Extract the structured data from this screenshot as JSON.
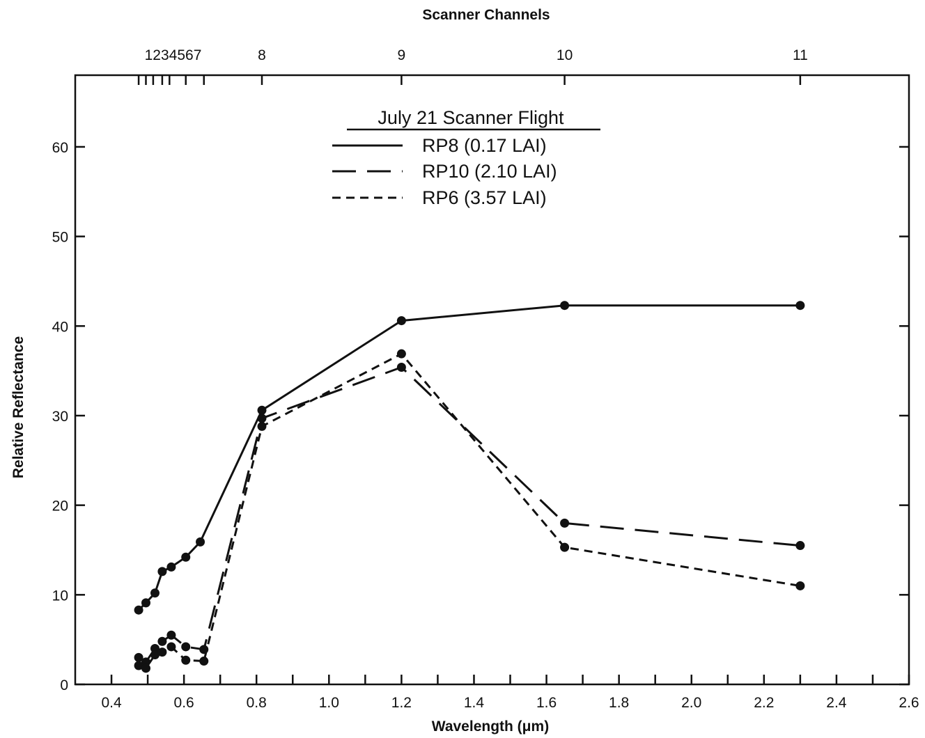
{
  "chart_data": {
    "type": "line",
    "title": "",
    "xlabel": "Wavelength (μm)",
    "ylabel": "Relative Reflectance",
    "top_axis_label": "Scanner Channels",
    "xlim": [
      0.3,
      2.6
    ],
    "ylim": [
      0,
      68
    ],
    "x_ticks": [
      0.4,
      0.6,
      0.8,
      1.0,
      1.2,
      1.4,
      1.6,
      1.8,
      2.0,
      2.2,
      2.4,
      2.6
    ],
    "x_tick_labels": [
      "0.4",
      "0.6",
      "0.8",
      "1.0",
      "1.2",
      "1.4",
      "1.6",
      "1.8",
      "2.0",
      "2.2",
      "2.4",
      "2.6"
    ],
    "y_ticks": [
      0,
      10,
      20,
      30,
      40,
      50,
      60
    ],
    "y_tick_labels": [
      "0",
      "10",
      "20",
      "30",
      "40",
      "50",
      "60"
    ],
    "channel_ticks": [
      0.475,
      0.495,
      0.515,
      0.54,
      0.56,
      0.605,
      0.655,
      0.815,
      1.2,
      1.65,
      2.3
    ],
    "channel_labels": [
      {
        "text": "1234567",
        "x": 0.57
      },
      {
        "text": "8",
        "x": 0.815
      },
      {
        "text": "9",
        "x": 1.2
      },
      {
        "text": "10",
        "x": 1.65
      },
      {
        "text": "11",
        "x": 2.3
      }
    ],
    "grid": false,
    "legend": {
      "title": "July 21 Scanner Flight",
      "placement": "top-center"
    },
    "series": [
      {
        "name": "RP8 (0.17 LAI)",
        "style": "solid",
        "x": [
          0.475,
          0.495,
          0.52,
          0.54,
          0.565,
          0.605,
          0.645,
          0.815,
          1.2,
          1.65,
          2.3
        ],
        "y": [
          8.3,
          9.1,
          10.2,
          12.6,
          13.1,
          14.2,
          15.9,
          30.6,
          40.6,
          42.3,
          42.3
        ]
      },
      {
        "name": "RP10 (2.10 LAI)",
        "style": "long-dash",
        "x": [
          0.475,
          0.495,
          0.52,
          0.54,
          0.565,
          0.605,
          0.655,
          0.815,
          1.2,
          1.65,
          2.3
        ],
        "y": [
          3.0,
          2.5,
          4.0,
          4.8,
          5.5,
          4.2,
          3.9,
          29.7,
          35.4,
          18.0,
          15.5
        ]
      },
      {
        "name": "RP6 (3.57 LAI)",
        "style": "short-dash",
        "x": [
          0.475,
          0.495,
          0.52,
          0.54,
          0.565,
          0.605,
          0.655,
          0.815,
          1.2,
          1.65,
          2.3
        ],
        "y": [
          2.1,
          1.8,
          3.3,
          3.6,
          4.2,
          2.7,
          2.6,
          28.8,
          36.9,
          15.3,
          11.0
        ]
      }
    ],
    "colors": {
      "ink": "#111111",
      "background": "#ffffff"
    }
  }
}
